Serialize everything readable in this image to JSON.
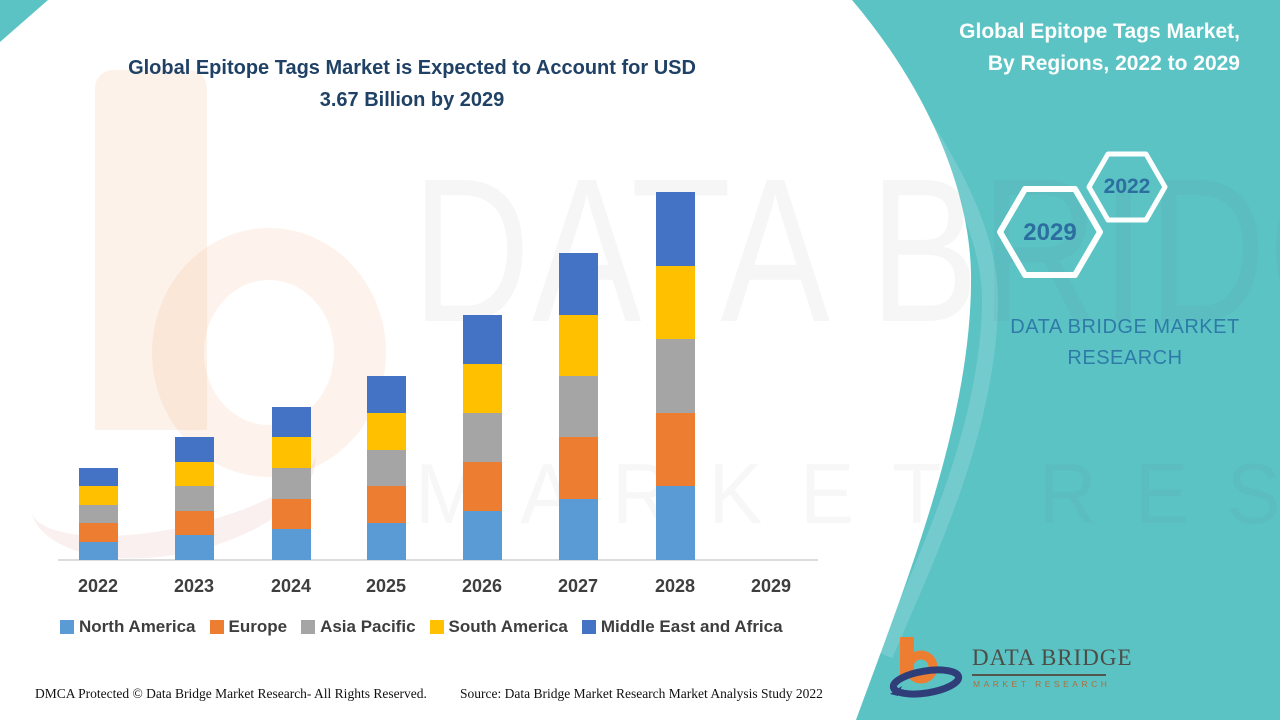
{
  "header": {
    "title_line1": "Global Epitope Tags Market is Expected to Account for USD",
    "title_line2": "3.67 Billion by 2029"
  },
  "side_panel": {
    "title_line1": "Global Epitope Tags Market,",
    "title_line2": "By Regions, 2022 to 2029",
    "hexagon_large_label": "2029",
    "hexagon_small_label": "2022",
    "brand_line1": "DATA BRIDGE MARKET",
    "brand_line2": "RESEARCH"
  },
  "chart_data": {
    "type": "bar",
    "stacked": true,
    "title": "Global Epitope Tags Market, By Regions, 2022 to 2029",
    "xlabel": "",
    "ylabel": "",
    "axis_values_shown": false,
    "note": "No y-axis scale is shown; values are relative bar heights read from pixels (2028 tallest = 12 units). Each region segment is approximately one fifth of the yearly total. No bar is drawn for 2029.",
    "categories": [
      "2022",
      "2023",
      "2024",
      "2025",
      "2026",
      "2027",
      "2028",
      "2029"
    ],
    "totals_relative": [
      3,
      4,
      5,
      6,
      8,
      10,
      12,
      0
    ],
    "series": [
      {
        "name": "North America",
        "color": "#5B9BD5",
        "values": [
          0.6,
          0.8,
          1.0,
          1.2,
          1.6,
          2.0,
          2.4,
          0
        ]
      },
      {
        "name": "Europe",
        "color": "#ED7D31",
        "values": [
          0.6,
          0.8,
          1.0,
          1.2,
          1.6,
          2.0,
          2.4,
          0
        ]
      },
      {
        "name": "Asia Pacific",
        "color": "#A5A5A5",
        "values": [
          0.6,
          0.8,
          1.0,
          1.2,
          1.6,
          2.0,
          2.4,
          0
        ]
      },
      {
        "name": "South America",
        "color": "#FFC000",
        "values": [
          0.6,
          0.8,
          1.0,
          1.2,
          1.6,
          2.0,
          2.4,
          0
        ]
      },
      {
        "name": "Middle East and Africa",
        "color": "#4472C4",
        "values": [
          0.6,
          0.8,
          1.0,
          1.2,
          1.6,
          2.0,
          2.4,
          0
        ]
      }
    ],
    "legend_position": "bottom"
  },
  "watermark": {
    "line1": "DATA BRIDGE",
    "line2": "MARKET RESEARCH"
  },
  "logo": {
    "name": "DATA BRIDGE",
    "tagline": "MARKET RESEARCH"
  },
  "footer": {
    "left": "DMCA Protected © Data Bridge Market Research- All Rights Reserved.",
    "right": "Source: Data Bridge Market Research Market Analysis Study 2022"
  },
  "colors": {
    "teal_panel": "#5CC3C5",
    "title_navy": "#1F4166",
    "panel_text_blue": "#2E7BA8",
    "hexagon_year_blue": "#2B6E9F",
    "axis_text": "#3E3E3E",
    "logo_orange": "#ED7D31",
    "logo_navy": "#2F3E78"
  }
}
